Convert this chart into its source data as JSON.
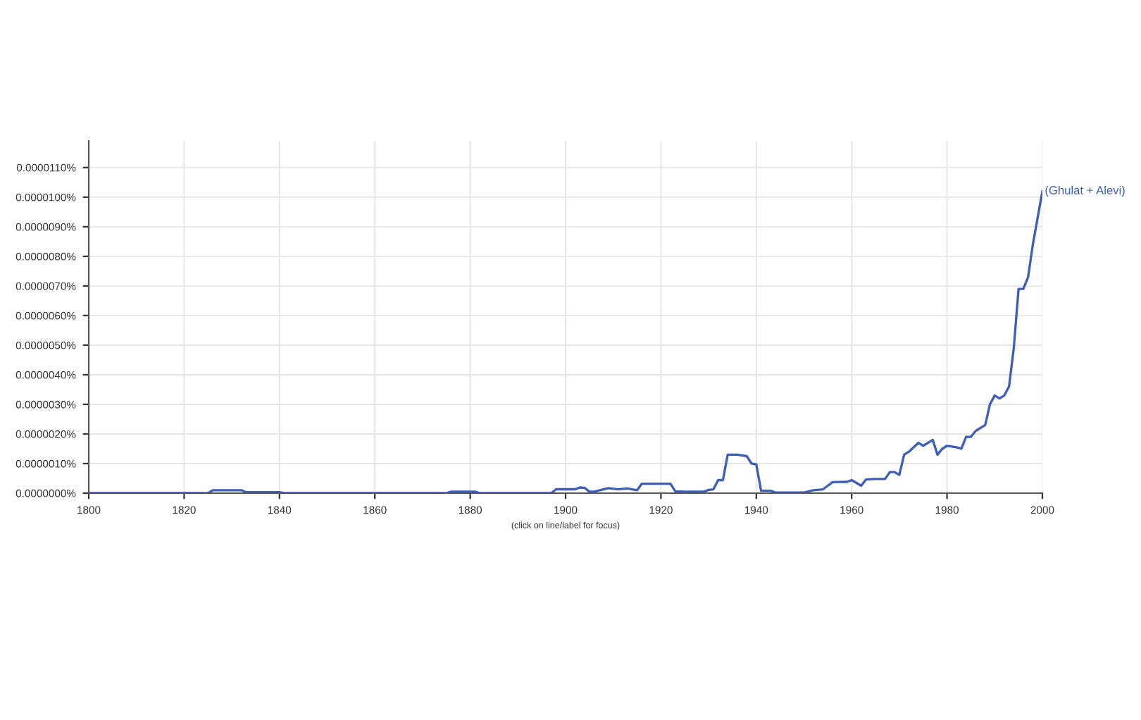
{
  "chart_data": {
    "type": "line",
    "xlabel": "(click on line/label for focus)",
    "x": [
      1800,
      1825,
      1826,
      1832,
      1833,
      1840,
      1841,
      1875,
      1876,
      1881,
      1882,
      1897,
      1898,
      1902,
      1903,
      1904,
      1905,
      1906,
      1909,
      1911,
      1913,
      1915,
      1916,
      1922,
      1923,
      1925,
      1929,
      1930,
      1931,
      1932,
      1933,
      1934,
      1936,
      1938,
      1939,
      1940,
      1941,
      1943,
      1944,
      1950,
      1952,
      1954,
      1956,
      1959,
      1960,
      1962,
      1963,
      1965,
      1967,
      1968,
      1969,
      1970,
      1971,
      1972,
      1974,
      1975,
      1977,
      1978,
      1979,
      1980,
      1982,
      1983,
      1984,
      1985,
      1986,
      1988,
      1989,
      1990,
      1991,
      1992,
      1993,
      1994,
      1995,
      1996,
      1997,
      1998,
      2000
    ],
    "series": [
      {
        "name": "(Ghulat + Alevi)",
        "color": "#3d5fb8",
        "values": [
          0,
          0,
          1e-07,
          1e-07,
          3e-08,
          3e-08,
          0,
          0,
          5e-08,
          5e-08,
          0,
          0,
          1.3e-07,
          1.3e-07,
          1.9e-07,
          1.8e-07,
          5e-08,
          5e-08,
          1.7e-07,
          1.3e-07,
          1.6e-07,
          1e-07,
          3.2e-07,
          3.2e-07,
          6e-08,
          5e-08,
          5e-08,
          1.1e-07,
          1.3e-07,
          4.4e-07,
          4.4e-07,
          1.3e-06,
          1.3e-06,
          1.25e-06,
          1e-06,
          9.7e-07,
          8e-08,
          8e-08,
          2e-08,
          2e-08,
          1e-07,
          1.3e-07,
          3.7e-07,
          3.8e-07,
          4.4e-07,
          2.5e-07,
          4.6e-07,
          4.8e-07,
          4.8e-07,
          7.1e-07,
          7.1e-07,
          6.2e-07,
          1.3e-06,
          1.4e-06,
          1.7e-06,
          1.6e-06,
          1.8e-06,
          1.3e-06,
          1.5e-06,
          1.6e-06,
          1.55e-06,
          1.5e-06,
          1.9e-06,
          1.9e-06,
          2.1e-06,
          2.3e-06,
          3e-06,
          3.3e-06,
          3.2e-06,
          3.3e-06,
          3.6e-06,
          4.9e-06,
          6.9e-06,
          6.9e-06,
          7.3e-06,
          8.4e-06,
          1.02e-05
        ]
      }
    ],
    "xlim": [
      1800,
      2000
    ],
    "xticks": [
      1800,
      1820,
      1840,
      1860,
      1880,
      1900,
      1920,
      1940,
      1960,
      1980,
      2000
    ],
    "ylim": [
      0,
      1.19e-05
    ],
    "yticks": [
      {
        "value": 0,
        "label": "0.0000000%"
      },
      {
        "value": 1e-06,
        "label": "0.0000010%"
      },
      {
        "value": 2e-06,
        "label": "0.0000020%"
      },
      {
        "value": 3e-06,
        "label": "0.0000030%"
      },
      {
        "value": 4e-06,
        "label": "0.0000040%"
      },
      {
        "value": 5e-06,
        "label": "0.0000050%"
      },
      {
        "value": 6e-06,
        "label": "0.0000060%"
      },
      {
        "value": 7e-06,
        "label": "0.0000070%"
      },
      {
        "value": 8e-06,
        "label": "0.0000080%"
      },
      {
        "value": 9e-06,
        "label": "0.0000090%"
      },
      {
        "value": 1e-05,
        "label": "0.0000100%"
      },
      {
        "value": 1.1e-05,
        "label": "0.0000110%"
      }
    ],
    "grid": true,
    "legend": false,
    "marker": "none",
    "line_style": "solid"
  }
}
